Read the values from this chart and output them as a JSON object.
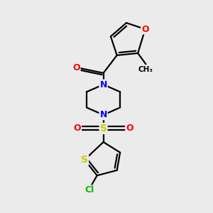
{
  "background_color": "#ebebeb",
  "atom_colors": {
    "O": "#ff0000",
    "N": "#0000ff",
    "S": "#cccc00",
    "Cl": "#00bb00",
    "C": "#000000"
  },
  "bond_color": "#000000",
  "bond_width": 1.6,
  "font_size_atoms": 9,
  "font_size_methyl": 8,
  "xlim": [
    0,
    10
  ],
  "ylim": [
    0,
    10
  ]
}
